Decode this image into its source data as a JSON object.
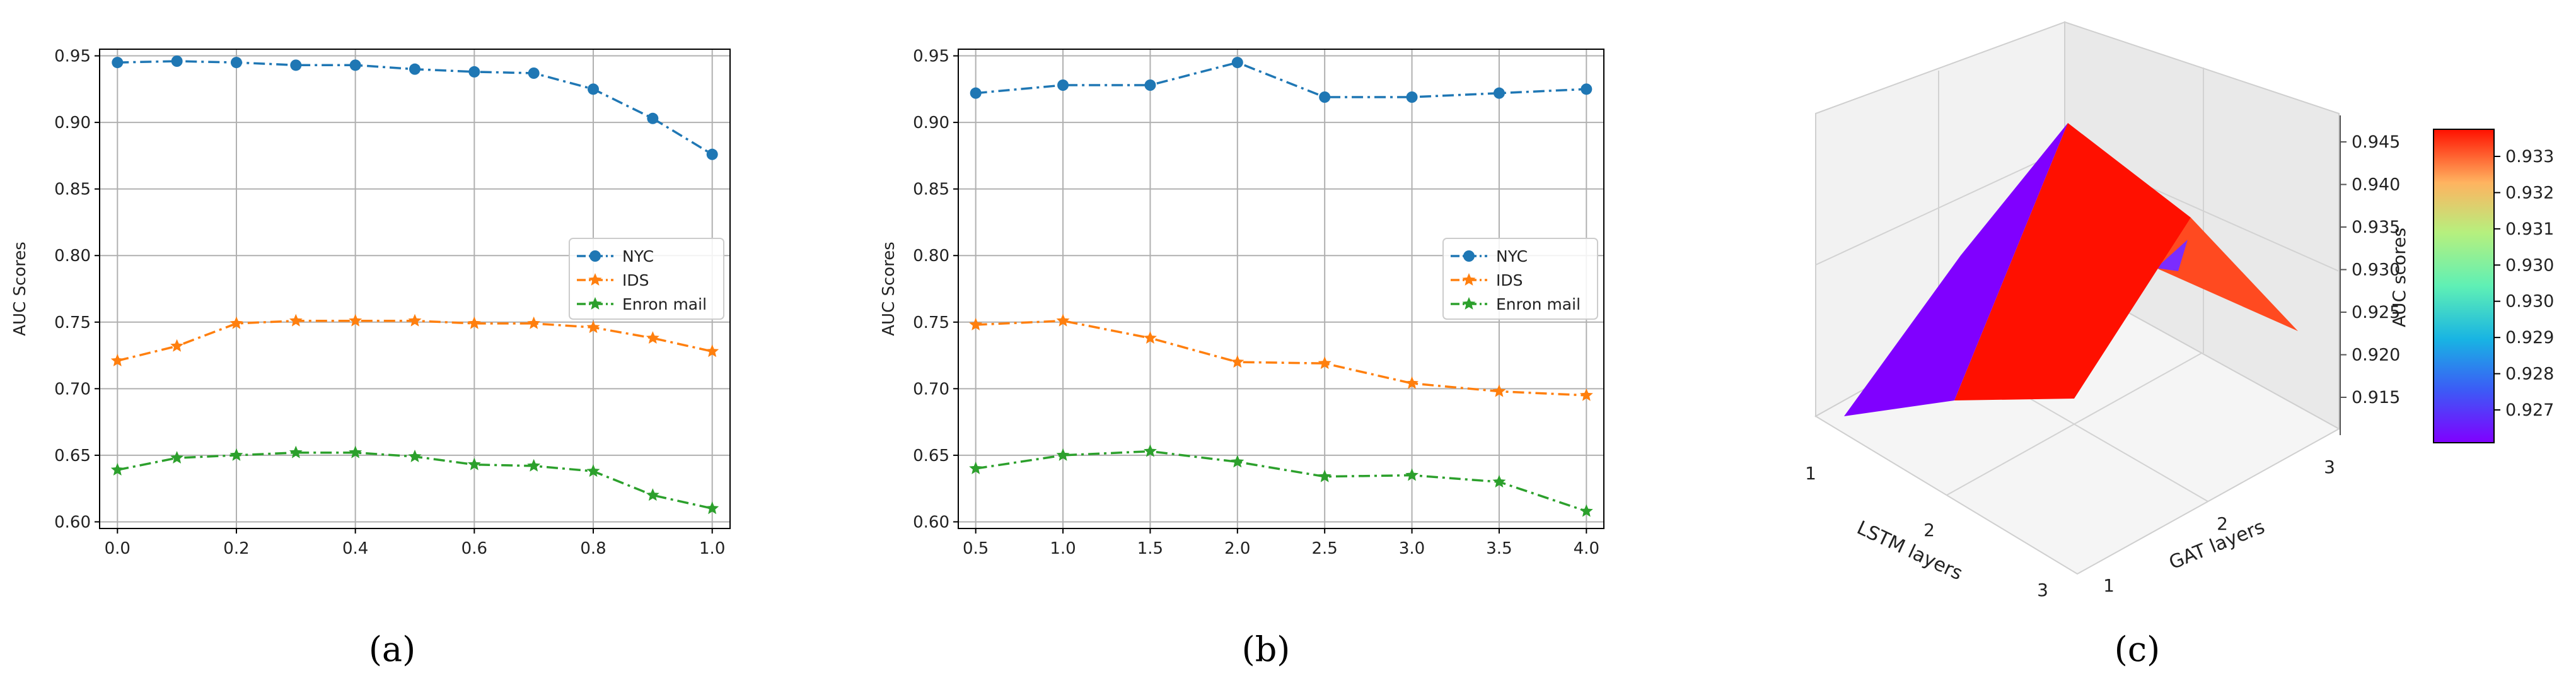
{
  "chart_data": [
    {
      "type": "line",
      "caption": "(a)",
      "ylabel": "AUC Scores",
      "xlabel": "",
      "xlim": [
        -0.03,
        1.03
      ],
      "ylim": [
        0.595,
        0.955
      ],
      "xticks": [
        "0.0",
        "0.2",
        "0.4",
        "0.6",
        "0.8",
        "1.0"
      ],
      "yticks": [
        "0.60",
        "0.65",
        "0.70",
        "0.75",
        "0.80",
        "0.85",
        "0.90",
        "0.95"
      ],
      "grid": true,
      "legend": "center-right",
      "x": [
        0.0,
        0.1,
        0.2,
        0.3,
        0.4,
        0.5,
        0.6,
        0.7,
        0.8,
        0.9,
        1.0
      ],
      "series": [
        {
          "name": "NYC",
          "marker": "circle",
          "color": "#1f77b4",
          "values": [
            0.945,
            0.946,
            0.945,
            0.943,
            0.943,
            0.94,
            0.938,
            0.937,
            0.925,
            0.903,
            0.876
          ]
        },
        {
          "name": "IDS",
          "marker": "star",
          "color": "#ff7f0e",
          "values": [
            0.721,
            0.732,
            0.749,
            0.751,
            0.751,
            0.751,
            0.749,
            0.749,
            0.746,
            0.738,
            0.728
          ]
        },
        {
          "name": "Enron mail",
          "marker": "star",
          "color": "#2ca02c",
          "values": [
            0.639,
            0.648,
            0.65,
            0.652,
            0.652,
            0.649,
            0.643,
            0.642,
            0.638,
            0.62,
            0.61
          ]
        }
      ]
    },
    {
      "type": "line",
      "caption": "(b)",
      "ylabel": "AUC Scores",
      "xlabel": "",
      "xlim": [
        0.4,
        4.1
      ],
      "ylim": [
        0.595,
        0.955
      ],
      "xticks": [
        "0.5",
        "1.0",
        "1.5",
        "2.0",
        "2.5",
        "3.0",
        "3.5",
        "4.0"
      ],
      "yticks": [
        "0.60",
        "0.65",
        "0.70",
        "0.75",
        "0.80",
        "0.85",
        "0.90",
        "0.95"
      ],
      "grid": true,
      "legend": "center-right",
      "x": [
        0.5,
        1.0,
        1.5,
        2.0,
        2.5,
        3.0,
        3.5,
        4.0
      ],
      "series": [
        {
          "name": "NYC",
          "marker": "circle",
          "color": "#1f77b4",
          "values": [
            0.922,
            0.928,
            0.928,
            0.945,
            0.919,
            0.919,
            0.922,
            0.925
          ]
        },
        {
          "name": "IDS",
          "marker": "star",
          "color": "#ff7f0e",
          "values": [
            0.748,
            0.751,
            0.738,
            0.72,
            0.719,
            0.704,
            0.698,
            0.695
          ]
        },
        {
          "name": "Enron mail",
          "marker": "star",
          "color": "#2ca02c",
          "values": [
            0.64,
            0.65,
            0.653,
            0.645,
            0.634,
            0.635,
            0.63,
            0.608
          ]
        }
      ]
    },
    {
      "type": "surface3d",
      "caption": "(c)",
      "xlabel": "LSTM layers",
      "ylabel": "GAT layers",
      "zlabel": "AUC scores",
      "xticks": [
        "1",
        "2",
        "3"
      ],
      "yticks": [
        "1",
        "2",
        "3"
      ],
      "zticks": [
        "0.915",
        "0.920",
        "0.925",
        "0.930",
        "0.935",
        "0.940",
        "0.945"
      ],
      "zlim": [
        0.912,
        0.947
      ],
      "colorbar": {
        "ticks": [
          "0.927",
          "0.928",
          "0.929",
          "0.930",
          "0.930",
          "0.931",
          "0.932",
          "0.933"
        ],
        "colormap": "rainbow"
      },
      "grid": true
    }
  ]
}
